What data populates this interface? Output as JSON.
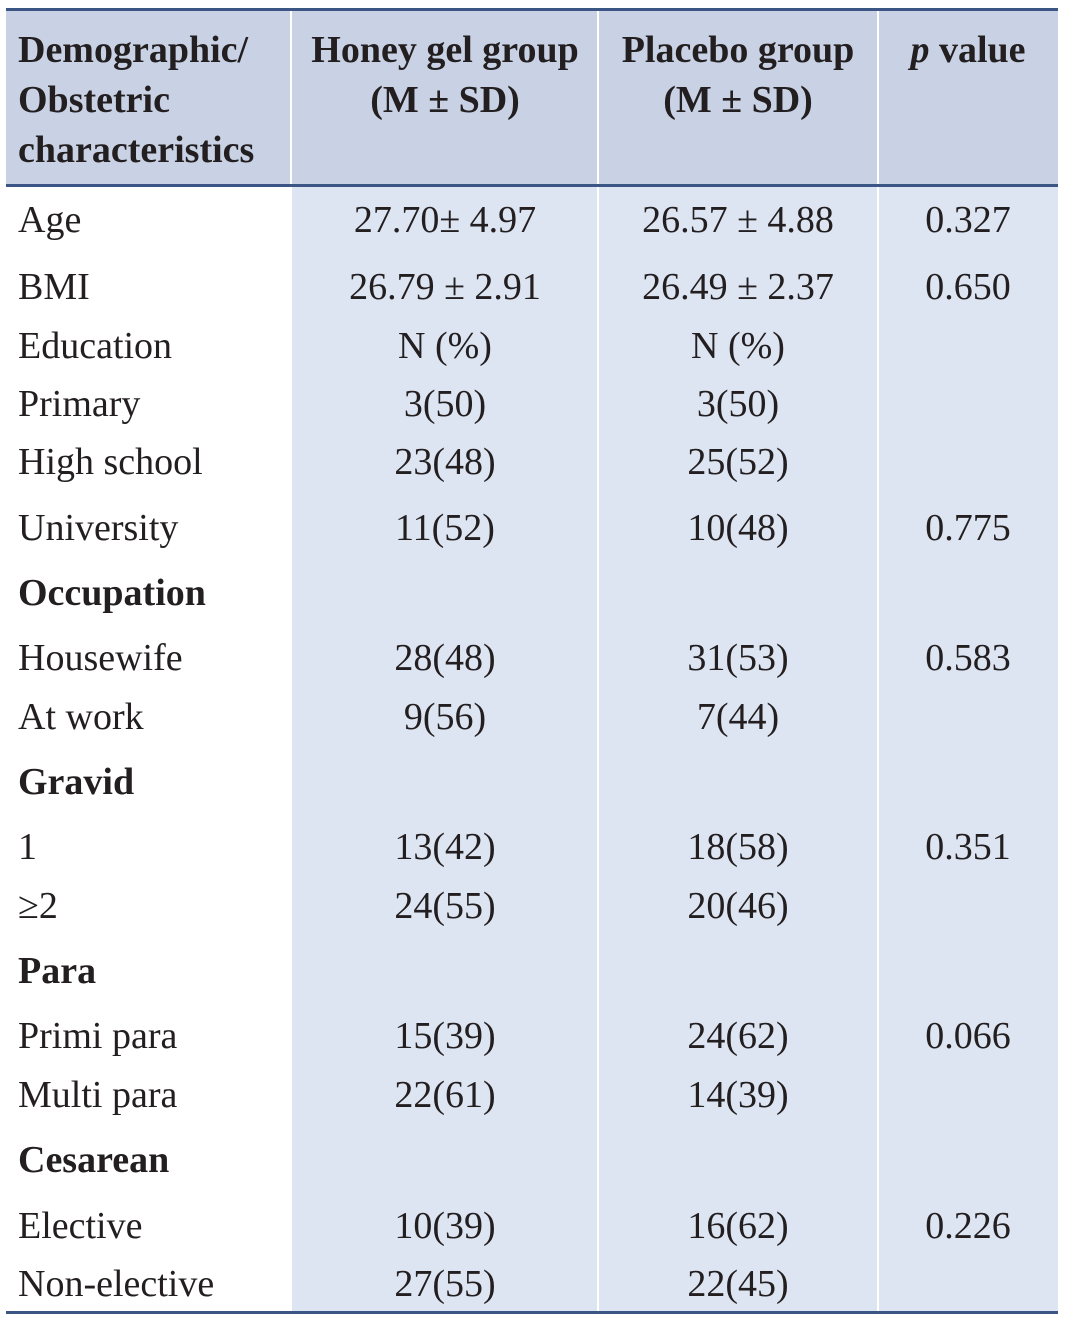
{
  "table": {
    "header": [
      [
        "Demographic/",
        "Obstetric",
        "characteristics"
      ],
      [
        "Honey gel group",
        "(M ± SD)"
      ],
      [
        "Placebo group",
        "(M ± SD)"
      ],
      {
        "em": "p",
        "rest": "value"
      }
    ],
    "rows": [
      [
        "Age",
        "27.70± 4.97",
        "26.57 ± 4.88",
        "0.327"
      ],
      [
        "BMI",
        "26.79 ± 2.91",
        "26.49 ± 2.37",
        "0.650"
      ],
      [
        "Education",
        "N (%)",
        "N (%)",
        null
      ],
      [
        "Primary",
        "3(50)",
        "3(50)",
        null
      ],
      [
        "High school",
        "23(48)",
        "25(52)",
        null
      ],
      [
        "University",
        "11(52)",
        "10(48)",
        "0.775"
      ],
      {
        "section": "Occupation"
      },
      [
        "Housewife",
        "28(48)",
        "31(53)",
        "0.583"
      ],
      [
        "At work",
        "9(56)",
        "7(44)",
        null
      ],
      {
        "section": "Gravid"
      },
      [
        "1",
        "13(42)",
        "18(58)",
        "0.351"
      ],
      [
        "≥2",
        "24(55)",
        "20(46)",
        null
      ],
      {
        "section": "Para"
      },
      [
        "Primi para",
        "15(39)",
        "24(62)",
        "0.066"
      ],
      [
        "Multi para",
        "22(61)",
        "14(39)",
        null
      ],
      {
        "section": "Cesarean"
      },
      [
        "Elective",
        "10(39)",
        "16(62)",
        "0.226"
      ],
      [
        "Non-elective",
        "27(55)",
        "22(45)",
        null
      ]
    ]
  }
}
